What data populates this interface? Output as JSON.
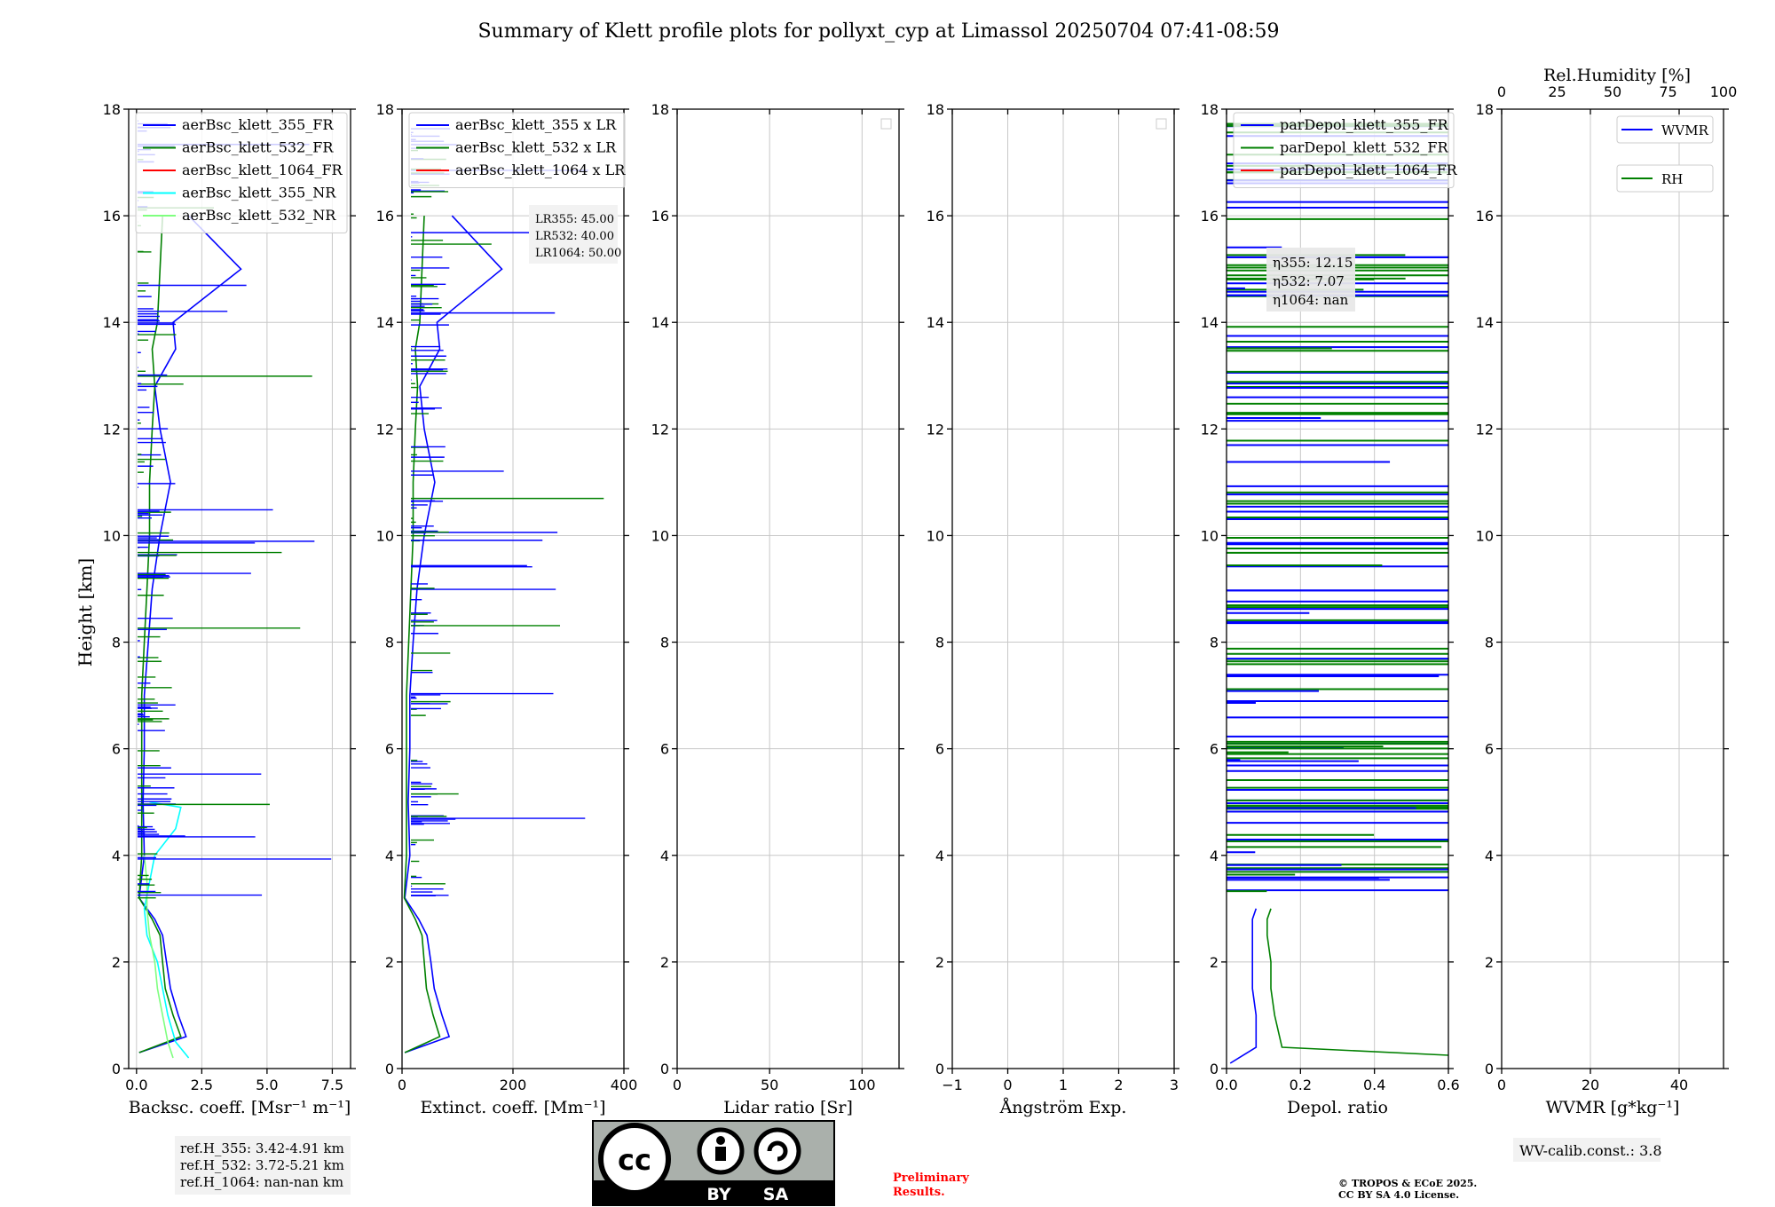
{
  "title": "Summary of Klett profile plots for pollyxt_cyp at Limassol 20250704 07:41-08:59",
  "ylabel": "Height [km]",
  "colors": {
    "c355": "#0000ff",
    "c532": "#008000",
    "c1064": "#ff0000",
    "c355nr": "#00ffff",
    "c532nr": "#7fff7f",
    "grid": "#c8c8c8"
  },
  "panels": [
    {
      "id": "bsc",
      "xlabel": "Backsc. coeff. [Msr⁻¹ m⁻¹]",
      "xlim": [
        -0.3,
        8.2
      ],
      "xticks": [
        "0.0",
        "2.5",
        "5.0",
        "7.5"
      ],
      "xtick_values": [
        0,
        2.5,
        5,
        7.5
      ],
      "legend": [
        "aerBsc_klett_355_FR",
        "aerBsc_klett_532_FR",
        "aerBsc_klett_1064_FR",
        "aerBsc_klett_355_NR",
        "aerBsc_klett_532_NR"
      ],
      "legend_colors": [
        "#0000ff",
        "#008000",
        "#ff0000",
        "#00ffff",
        "#7fff7f"
      ]
    },
    {
      "id": "ext",
      "xlabel": "Extinct. coeff. [Mm⁻¹]",
      "xlim": [
        0,
        400
      ],
      "xticks": [
        "0",
        "200",
        "400"
      ],
      "xtick_values": [
        0,
        200,
        400
      ],
      "legend": [
        "aerBsc_klett_355 x LR",
        "aerBsc_klett_532 x LR",
        "aerBsc_klett_1064 x LR"
      ],
      "legend_colors": [
        "#0000ff",
        "#008000",
        "#ff0000"
      ],
      "lr_box": [
        "LR355: 45.00",
        "LR532: 40.00",
        "LR1064: 50.00"
      ]
    },
    {
      "id": "lr",
      "xlabel": "Lidar ratio [Sr]",
      "xlim": [
        0,
        120
      ],
      "xticks": [
        "0",
        "50",
        "100"
      ],
      "xtick_values": [
        0,
        50,
        100
      ]
    },
    {
      "id": "ang",
      "xlabel": "Ångström Exp.",
      "xlim": [
        -1,
        3
      ],
      "xticks": [
        "−1",
        "0",
        "1",
        "2",
        "3"
      ],
      "xtick_values": [
        -1,
        0,
        1,
        2,
        3
      ]
    },
    {
      "id": "depol",
      "xlabel": "Depol. ratio",
      "xlim": [
        0,
        0.6
      ],
      "xticks": [
        "0.0",
        "0.2",
        "0.4",
        "0.6"
      ],
      "xtick_values": [
        0,
        0.2,
        0.4,
        0.6
      ],
      "legend": [
        "parDepol_klett_355_FR",
        "parDepol_klett_532_FR",
        "parDepol_klett_1064_FR"
      ],
      "legend_colors": [
        "#0000ff",
        "#008000",
        "#ff0000"
      ],
      "eta_box": [
        "η355: 12.15",
        "η532: 7.07",
        "η1064: nan"
      ]
    },
    {
      "id": "wv",
      "xlabel": "WVMR [g*kg⁻¹]",
      "xlim": [
        0,
        50
      ],
      "xticks": [
        "0",
        "20",
        "40"
      ],
      "xtick_values": [
        0,
        20,
        40
      ],
      "top_label": "Rel.Humidity [%]",
      "top_xticks": [
        "0",
        "25",
        "50",
        "75",
        "100"
      ],
      "top_xtick_values": [
        0,
        25,
        50,
        75,
        100
      ],
      "legend": [
        "WVMR",
        "RH"
      ],
      "legend_colors": [
        "#0000ff",
        "#008000"
      ]
    }
  ],
  "yticks": [
    "0",
    "2",
    "4",
    "6",
    "8",
    "10",
    "12",
    "14",
    "16",
    "18"
  ],
  "ytick_values": [
    0,
    2,
    4,
    6,
    8,
    10,
    12,
    14,
    16,
    18
  ],
  "ylim": [
    0,
    18
  ],
  "ref_box": [
    "ref.H_355: 3.42-4.91 km",
    "ref.H_532: 3.72-5.21 km",
    "ref.H_1064: nan-nan km"
  ],
  "wv_calib": "WV-calib.const.: 3.8",
  "license_badge": {
    "cc": "cc",
    "by": "BY",
    "sa": "SA"
  },
  "preliminary": [
    "Preliminary",
    "Results."
  ],
  "copyright": [
    "© TROPOS & ECoE 2025.",
    "CC BY SA 4.0 License."
  ],
  "chart_data": {
    "type": "line",
    "title": "Summary of Klett profile plots for pollyxt_cyp at Limassol 20250704 07:41-08:59",
    "ylabel": "Height [km]",
    "ylim": [
      0,
      18
    ],
    "grid": true,
    "panels": [
      {
        "xlabel": "Backsc. coeff. [Msr⁻¹ m⁻¹]",
        "xlim": [
          -0.3,
          8.2
        ],
        "legend_placement": "top-left",
        "series": [
          {
            "name": "aerBsc_klett_355_FR",
            "x": [
              0.1,
              1.9,
              1.6,
              1.3,
              1.15,
              1.0,
              0.7,
              0.1,
              0.3,
              0.25,
              0.3,
              0.3,
              0.45,
              0.6,
              0.9,
              1.3,
              0.9,
              0.7,
              1.5,
              1.4,
              4.0,
              2.0
            ],
            "y": [
              0.3,
              0.6,
              1.0,
              1.5,
              2.0,
              2.5,
              2.8,
              3.2,
              4.0,
              5.0,
              6.0,
              7.0,
              8.0,
              9.0,
              10.0,
              11.0,
              12.0,
              12.8,
              13.5,
              14.0,
              15.0,
              16.0
            ]
          },
          {
            "name": "aerBsc_klett_532_FR",
            "x": [
              0.1,
              1.7,
              1.4,
              1.1,
              1.0,
              0.9,
              0.6,
              0.1,
              0.2,
              0.2,
              0.2,
              0.2,
              0.3,
              0.4,
              0.5,
              0.5,
              0.6,
              0.7,
              0.6,
              0.8,
              0.9,
              1.0
            ],
            "y": [
              0.3,
              0.6,
              1.0,
              1.5,
              2.0,
              2.5,
              2.8,
              3.2,
              4.0,
              5.0,
              6.0,
              7.0,
              8.0,
              9.0,
              10.0,
              11.0,
              12.0,
              12.8,
              13.5,
              14.0,
              15.0,
              16.0
            ]
          },
          {
            "name": "aerBsc_klett_1064_FR",
            "x": [],
            "y": []
          },
          {
            "name": "aerBsc_klett_355_NR",
            "x": [
              2.0,
              1.5,
              1.2,
              1.0,
              0.8,
              0.4,
              0.3,
              0.7,
              1.5,
              1.7,
              0.5
            ],
            "y": [
              0.2,
              0.5,
              1.0,
              1.5,
              2.0,
              2.5,
              3.0,
              4.0,
              4.5,
              4.9,
              5.0
            ]
          },
          {
            "name": "aerBsc_klett_532_NR",
            "x": [
              1.4,
              1.2,
              1.0,
              0.8,
              0.7,
              0.5,
              0.4,
              0.4,
              0.3
            ],
            "y": [
              0.2,
              0.5,
              1.0,
              1.5,
              2.0,
              2.5,
              3.0,
              3.5,
              4.0
            ]
          }
        ]
      },
      {
        "xlabel": "Extinct. coeff. [Mm⁻¹]",
        "xlim": [
          0,
          400
        ],
        "legend_placement": "top-left",
        "annotation": [
          "LR355: 45.00",
          "LR532: 40.00",
          "LR1064: 50.00"
        ],
        "series": [
          {
            "name": "aerBsc_klett_355 x LR",
            "x": [
              5,
              85,
              72,
              58,
              52,
              45,
              30,
              5,
              14,
              11,
              14,
              14,
              20,
              27,
              40,
              59,
              40,
              32,
              68,
              63,
              180,
              90
            ],
            "y": [
              0.3,
              0.6,
              1.0,
              1.5,
              2.0,
              2.5,
              2.8,
              3.2,
              4.0,
              5.0,
              6.0,
              7.0,
              8.0,
              9.0,
              10.0,
              11.0,
              12.0,
              12.8,
              13.5,
              14.0,
              15.0,
              16.0
            ]
          },
          {
            "name": "aerBsc_klett_532 x LR",
            "x": [
              5,
              68,
              56,
              44,
              40,
              36,
              24,
              4,
              8,
              8,
              8,
              8,
              12,
              16,
              20,
              20,
              24,
              28,
              24,
              32,
              36,
              40
            ],
            "y": [
              0.3,
              0.6,
              1.0,
              1.5,
              2.0,
              2.5,
              2.8,
              3.2,
              4.0,
              5.0,
              6.0,
              7.0,
              8.0,
              9.0,
              10.0,
              11.0,
              12.0,
              12.8,
              13.5,
              14.0,
              15.0,
              16.0
            ]
          },
          {
            "name": "aerBsc_klett_1064 x LR",
            "x": [],
            "y": []
          }
        ]
      },
      {
        "xlabel": "Lidar ratio [Sr]",
        "xlim": [
          0,
          120
        ],
        "series": []
      },
      {
        "xlabel": "Ångström Exp.",
        "xlim": [
          -1,
          3
        ],
        "series": []
      },
      {
        "xlabel": "Depol. ratio",
        "xlim": [
          0,
          0.6
        ],
        "legend_placement": "top-left",
        "annotation": [
          "η355: 12.15",
          "η532: 7.07",
          "η1064: nan"
        ],
        "series": [
          {
            "name": "parDepol_klett_355_FR",
            "x": [
              0.01,
              0.08,
              0.08,
              0.07,
              0.07,
              0.07,
              0.07,
              0.08
            ],
            "y": [
              0.1,
              0.4,
              1.0,
              1.5,
              2.0,
              2.5,
              2.8,
              3.0
            ]
          },
          {
            "name": "parDepol_klett_532_FR",
            "x": [
              0.6,
              0.15,
              0.13,
              0.12,
              0.12,
              0.11,
              0.11,
              0.12
            ],
            "y": [
              0.25,
              0.4,
              1.0,
              1.5,
              2.0,
              2.5,
              2.8,
              3.0
            ]
          },
          {
            "name": "parDepol_klett_1064_FR",
            "x": [],
            "y": []
          }
        ]
      },
      {
        "xlabel": "WVMR [g*kg⁻¹]",
        "xlim": [
          0,
          50
        ],
        "top_axis_label": "Rel.Humidity [%]",
        "top_axis_lim": [
          0,
          100
        ],
        "legend_placement": "top-right",
        "series": [
          {
            "name": "WVMR",
            "x": [],
            "y": []
          },
          {
            "name": "RH",
            "x": [],
            "y": []
          }
        ]
      }
    ]
  }
}
